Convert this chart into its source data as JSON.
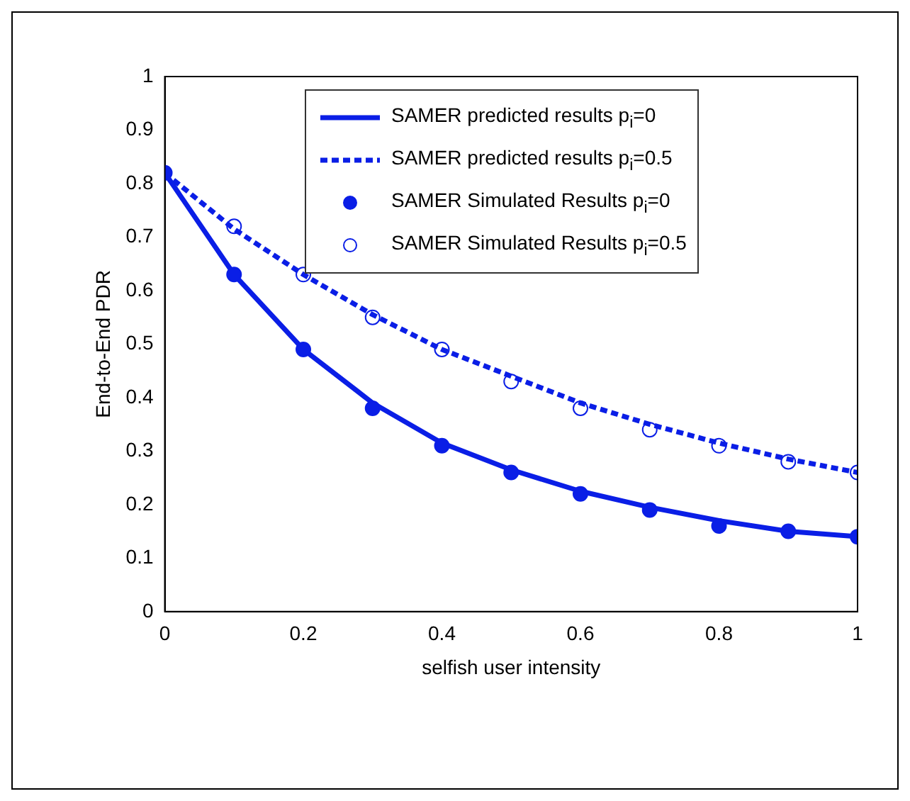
{
  "chart_data": {
    "type": "line",
    "xlabel": "selfish user intensity",
    "ylabel": "End-to-End PDR",
    "x": [
      0,
      0.1,
      0.2,
      0.3,
      0.4,
      0.5,
      0.6,
      0.7,
      0.8,
      0.9,
      1
    ],
    "xlim": [
      0,
      1
    ],
    "xticks": [
      0,
      0.2,
      0.4,
      0.6,
      0.8,
      1
    ],
    "ylim": [
      0,
      1
    ],
    "yticks": [
      0,
      0.1,
      0.2,
      0.3,
      0.4,
      0.5,
      0.6,
      0.7,
      0.8,
      0.9,
      1
    ],
    "grid": false,
    "legend": "top",
    "series": [
      {
        "name": "SAMER predicted results p$_{i}$=0",
        "type": "line",
        "color": "#0a1ee6",
        "line_style": "solid",
        "marker": "none",
        "values": [
          0.82,
          0.63,
          0.49,
          0.39,
          0.315,
          0.265,
          0.225,
          0.195,
          0.17,
          0.15,
          0.14
        ]
      },
      {
        "name": "SAMER predicted results p$_{i}$=0.5",
        "type": "line",
        "color": "#0a1ee6",
        "line_style": "dashed",
        "marker": "none",
        "values": [
          0.82,
          0.715,
          0.63,
          0.555,
          0.49,
          0.44,
          0.39,
          0.35,
          0.315,
          0.285,
          0.26
        ]
      },
      {
        "name": "SAMER Simulated Results p$_{i}$=0",
        "type": "scatter",
        "color": "#0a1ee6",
        "marker": "circle",
        "values": [
          0.82,
          0.63,
          0.49,
          0.38,
          0.31,
          0.26,
          0.22,
          0.19,
          0.16,
          0.15,
          0.14
        ]
      },
      {
        "name": "SAMER Simulated Results p$_{i}$=0.5",
        "type": "scatter",
        "color": "#0a1ee6",
        "marker": "circle-open",
        "values": [
          null,
          0.72,
          0.63,
          0.55,
          0.49,
          0.43,
          0.38,
          0.34,
          0.31,
          0.28,
          0.26
        ]
      }
    ]
  }
}
